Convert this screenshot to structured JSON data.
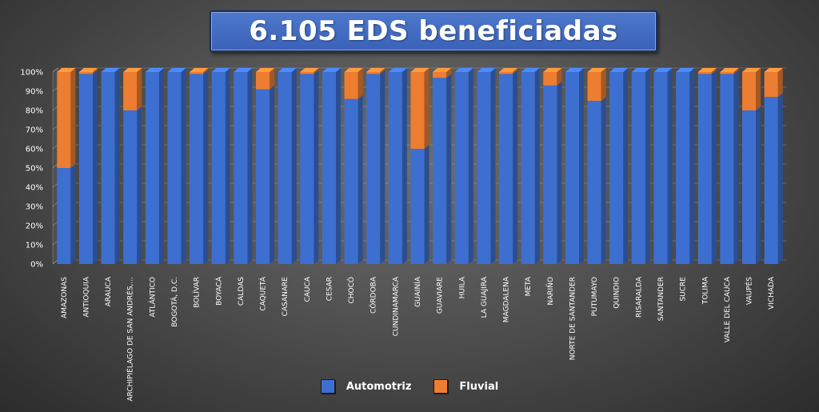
{
  "chart_data": {
    "type": "bar",
    "stacked": true,
    "percent": true,
    "title": "6.105 EDS beneficiadas",
    "categories": [
      "AMAZONAS",
      "ANTIOQUIA",
      "ARAUCA",
      "ARCHIPIÉLAGO DE SAN ANDRÉS,...",
      "ATLÁNTICO",
      "BOGOTÁ, D.C.",
      "BOLÍVAR",
      "BOYACÁ",
      "CALDAS",
      "CAQUETÁ",
      "CASANARE",
      "CAUCA",
      "CESAR",
      "CHOCÓ",
      "CÓRDOBA",
      "CUNDINAMARCA",
      "GUAINÍA",
      "GUAVIARE",
      "HUILA",
      "LA GUAJIRA",
      "MAGDALENA",
      "META",
      "NARIÑO",
      "NORTE DE SANTANDER",
      "PUTUMAYO",
      "QUINDIO",
      "RISARALDA",
      "SANTANDER",
      "SUCRE",
      "TOLIMA",
      "VALLE DEL CAUCA",
      "VAUPÉS",
      "VICHADA"
    ],
    "series": [
      {
        "name": "Automotriz",
        "color": "#3d6fd1",
        "values": [
          50,
          99,
          100,
          80,
          100,
          100,
          99,
          100,
          100,
          91,
          100,
          99,
          100,
          86,
          99,
          100,
          60,
          97,
          100,
          100,
          99,
          100,
          93,
          100,
          85,
          100,
          100,
          100,
          100,
          99,
          99,
          80,
          87
        ]
      },
      {
        "name": "Fluvial",
        "color": "#ed7d31",
        "values": [
          50,
          1,
          0,
          20,
          0,
          0,
          1,
          0,
          0,
          9,
          0,
          1,
          0,
          14,
          1,
          0,
          40,
          3,
          0,
          0,
          1,
          0,
          7,
          0,
          15,
          0,
          0,
          0,
          0,
          1,
          1,
          20,
          13
        ]
      }
    ],
    "y_ticks": [
      "0%",
      "10%",
      "20%",
      "30%",
      "40%",
      "50%",
      "60%",
      "70%",
      "80%",
      "90%",
      "100%"
    ],
    "ylim": [
      0,
      100
    ],
    "grid": true,
    "legend_position": "bottom"
  }
}
